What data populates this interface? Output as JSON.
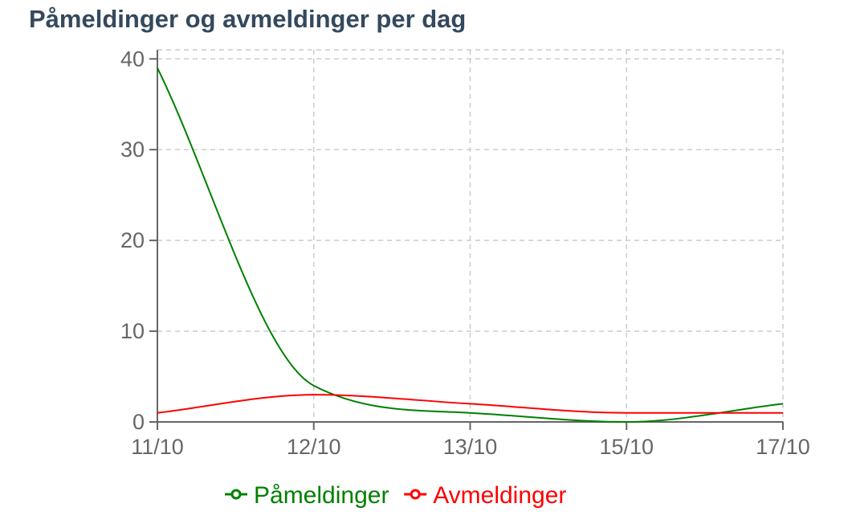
{
  "chart_data": {
    "type": "line",
    "title": "Påmeldinger og avmeldinger per dag",
    "categories": [
      "11/10",
      "12/10",
      "13/10",
      "15/10",
      "17/10"
    ],
    "series": [
      {
        "name": "Påmeldinger",
        "color": "#008000",
        "values": [
          39,
          4,
          1,
          0,
          2
        ]
      },
      {
        "name": "Avmeldinger",
        "color": "#ff0000",
        "values": [
          1,
          3,
          2,
          1,
          1
        ]
      }
    ],
    "yticks": [
      0,
      10,
      20,
      30,
      40
    ],
    "ylim": [
      0,
      41
    ],
    "grid": true,
    "legend": "bottom",
    "xlabel": "",
    "ylabel": ""
  }
}
